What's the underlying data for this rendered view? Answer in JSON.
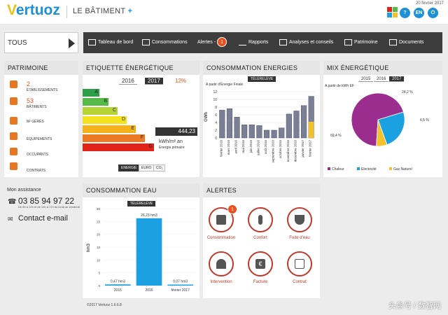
{
  "header": {
    "logo_v": "V",
    "logo_rest": "ertuoz",
    "site_name": "LE BÂTIMENT",
    "site_plus": "+",
    "date": "20 février 2017",
    "lang": "EN"
  },
  "nav": {
    "tous_label": "TOUS",
    "items": [
      {
        "label": "Tableau de bord"
      },
      {
        "label": "Consommations"
      },
      {
        "label": "Alertes -",
        "badge": "1"
      },
      {
        "label": "Rapports"
      },
      {
        "label": "Analyses et conseils"
      },
      {
        "label": "Patrimoine"
      },
      {
        "label": "Documents"
      }
    ]
  },
  "patrimoine": {
    "title": "PATRIMOINE",
    "items": [
      {
        "icon": "building-icon",
        "number": "2",
        "label": "ÉTABLISSEMENTS"
      },
      {
        "icon": "building-icon",
        "number": "53",
        "label": "BÂTIMENTS"
      },
      {
        "icon": "area-icon",
        "number": "",
        "label": "M² GÉRÉS"
      },
      {
        "icon": "equipment-icon",
        "number": "",
        "label": "ÉQUIPEMENTS"
      },
      {
        "icon": "occupants-icon",
        "number": "",
        "label": "OCCUPANTS"
      },
      {
        "icon": "contract-icon",
        "number": "",
        "label": "CONTRATS"
      }
    ]
  },
  "etiquette": {
    "title": "ETIQUETTE ÉNERGÉTIQUE",
    "year1": "2016",
    "year2": "2017",
    "change": "12%",
    "value": "444,23",
    "unit": "kWh/m² an",
    "unit_sub": "Energie primaire",
    "classes": [
      {
        "letter": "A",
        "color": "#2e9e47"
      },
      {
        "letter": "B",
        "color": "#57b947"
      },
      {
        "letter": "C",
        "color": "#b6d433"
      },
      {
        "letter": "D",
        "color": "#f4e21f"
      },
      {
        "letter": "E",
        "color": "#f6b21a"
      },
      {
        "letter": "F",
        "color": "#ec7a23"
      },
      {
        "letter": "G",
        "color": "#e2231a"
      }
    ],
    "toggles": [
      "ENERGIE",
      "EURO",
      "CO₂"
    ]
  },
  "consommation_energies": {
    "title": "CONSOMMATION ENERGIES",
    "badge": "TÉLÉRELÈVE",
    "subtitle": "A partir d'Energie Finale",
    "ylabel": "GWh",
    "chart_data": {
      "type": "bar",
      "categories": [
        "février 2016",
        "mars 2016",
        "avril 2016",
        "mai 2016",
        "juin 2016",
        "juillet 2016",
        "août 2016",
        "septembre 2016",
        "octobre 2016",
        "novembre 2016",
        "décembre 2016",
        "janvier 2017",
        "février 2017"
      ],
      "values": [
        7.2,
        7.6,
        5.4,
        3.4,
        3.4,
        3.2,
        2.0,
        2.0,
        2.6,
        6.2,
        7.0,
        8.4,
        10.8
      ],
      "partial_last": 4.2,
      "yticks": [
        "0",
        "2",
        "4",
        "6",
        "8",
        "10",
        "12"
      ],
      "ylim": [
        0,
        12
      ]
    }
  },
  "mix": {
    "title": "MIX ÉNERGÉTIQUE",
    "years": [
      "2015",
      "2016",
      "2017"
    ],
    "subtitle": "A partir de kWh EF",
    "chart_data": {
      "type": "pie",
      "labels": [
        "Chaleur",
        "Electricité",
        "Gaz Naturel"
      ],
      "values": [
        69.4,
        24.2,
        6.5
      ],
      "value_labels": [
        "69,4 %",
        "24,2 %",
        "6,5 %"
      ],
      "colors": [
        "#9b2d8e",
        "#1ba1e2",
        "#f2c12e"
      ]
    }
  },
  "assistance": {
    "title": "Mon assistance",
    "phone": "03 85 94 97 22",
    "phone_note": "De 8h à 12h et de 14h à 17h du lundi au vendredi",
    "contact": "Contact e-mail"
  },
  "conso_eau": {
    "title": "CONSOMMATION EAU",
    "badge": "TÉLÉRELÈVE",
    "ylabel": "hm3",
    "chart_data": {
      "type": "bar",
      "categories": [
        "2015",
        "2016",
        "février 2017"
      ],
      "values": [
        0.47,
        26.23,
        0.07
      ],
      "value_labels": [
        "0,47 hm3",
        "26,23 hm3",
        "0,07 hm3"
      ],
      "yticks": [
        "0",
        "5",
        "10",
        "15",
        "20",
        "25",
        "30"
      ],
      "ylim": [
        0,
        30
      ]
    }
  },
  "alertes": {
    "title": "ALERTES",
    "items": [
      {
        "label": "Consommation",
        "badge": "1"
      },
      {
        "label": "Confort"
      },
      {
        "label": "Fuite d'eau"
      },
      {
        "label": "Intervention"
      },
      {
        "label": "Facture"
      },
      {
        "label": "Contrat"
      }
    ]
  },
  "footer": {
    "copyright": "©2017 Vertuoz  1.6.6.8",
    "watermark": "头条号 / 数智网"
  }
}
